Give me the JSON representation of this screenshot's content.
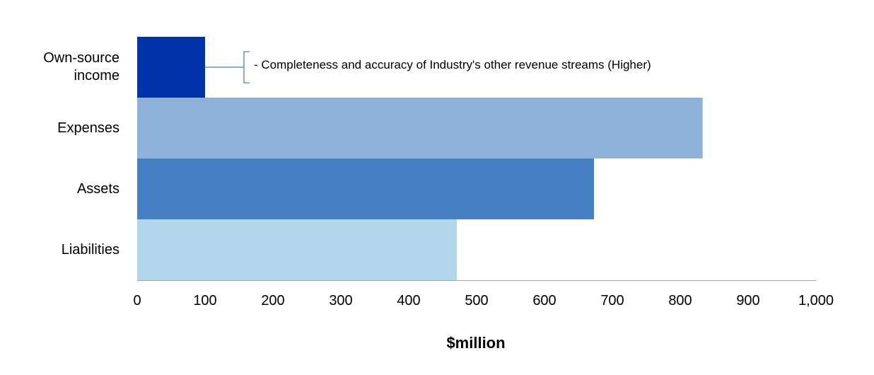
{
  "chart_data": {
    "type": "bar",
    "orientation": "horizontal",
    "categories": [
      "Own-source\nincome",
      "Expenses",
      "Assets",
      "Liabilities"
    ],
    "values": [
      100,
      833,
      673,
      471
    ],
    "colors": [
      "#0033a8",
      "#8eb1da",
      "#4580c2",
      "#b2d7ea"
    ],
    "xlabel": "$million",
    "xlim": [
      0,
      1000
    ],
    "xticks": [
      0,
      100,
      200,
      300,
      400,
      500,
      600,
      700,
      800,
      900,
      1000
    ],
    "xtick_labels": [
      "0",
      "100",
      "200",
      "300",
      "400",
      "500",
      "600",
      "700",
      "800",
      "900",
      "1,000"
    ],
    "annotation": "- Completeness and accuracy of Industry's other revenue streams (Higher)",
    "annotation_category": "Own-source\nincome",
    "grid": false
  }
}
